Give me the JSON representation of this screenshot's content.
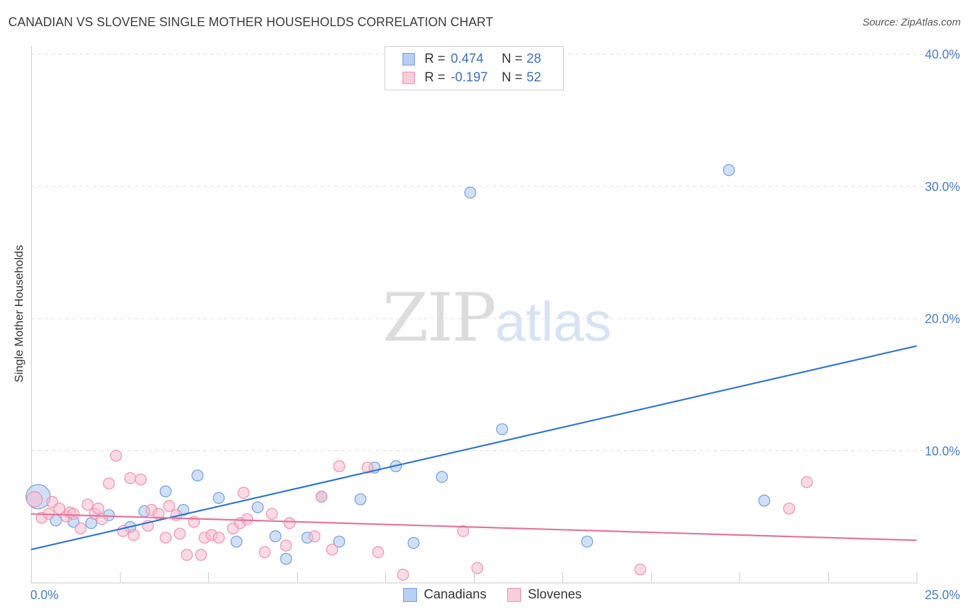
{
  "title": "CANADIAN VS SLOVENE SINGLE MOTHER HOUSEHOLDS CORRELATION CHART",
  "source": "Source: ZipAtlas.com",
  "watermark": {
    "zip": "ZIP",
    "atlas": "atlas"
  },
  "legend": {
    "rows": [
      {
        "r_label": "R =",
        "r_value": "0.474",
        "n_label": "N =",
        "n_value": "28"
      },
      {
        "r_label": "R =",
        "r_value": "-0.197",
        "n_label": "N =",
        "n_value": "52"
      }
    ]
  },
  "bottom_legend": {
    "items": [
      {
        "label": "Canadians"
      },
      {
        "label": "Slovenes"
      }
    ]
  },
  "colors": {
    "canadian_fill": "#a9c7ef",
    "canadian_stroke": "#6f9bdc",
    "canadian_line": "#2f74d0",
    "slovene_fill": "#f6bccd",
    "slovene_stroke": "#ee8fac",
    "slovene_line": "#e4729a",
    "grid": "#e0e0e0",
    "tick_text": "#4a7cc9"
  },
  "chart_data": {
    "type": "scatter",
    "title": "CANADIAN VS SLOVENE SINGLE MOTHER HOUSEHOLDS CORRELATION CHART",
    "xlabel": "",
    "ylabel": "Single Mother Households",
    "xlim": [
      0,
      25
    ],
    "ylim": [
      0,
      40
    ],
    "x_tick_labels": [
      "0.0%",
      "25.0%"
    ],
    "y_ticks": [
      10,
      20,
      30,
      40
    ],
    "y_tick_labels": [
      "10.0%",
      "20.0%",
      "30.0%",
      "40.0%"
    ],
    "series": [
      {
        "name": "Canadians",
        "r": 0.474,
        "n": 28,
        "trend": {
          "x0": 0,
          "y0": 2.5,
          "x1": 25,
          "y1": 17.9
        },
        "points": [
          [
            0.2,
            6.5,
            2.2
          ],
          [
            0.7,
            4.7,
            1
          ],
          [
            1.2,
            4.6,
            1
          ],
          [
            1.7,
            4.5,
            1
          ],
          [
            2.2,
            5.1,
            1
          ],
          [
            2.8,
            4.2,
            1
          ],
          [
            3.2,
            5.4,
            1
          ],
          [
            3.8,
            6.9,
            1
          ],
          [
            4.3,
            5.5,
            1
          ],
          [
            4.7,
            8.1,
            1
          ],
          [
            5.3,
            6.4,
            1
          ],
          [
            5.8,
            3.1,
            1
          ],
          [
            6.4,
            5.7,
            1
          ],
          [
            6.9,
            3.5,
            1
          ],
          [
            7.2,
            1.8,
            1
          ],
          [
            7.8,
            3.4,
            1
          ],
          [
            8.2,
            6.5,
            1
          ],
          [
            8.7,
            3.1,
            1
          ],
          [
            9.3,
            6.3,
            1
          ],
          [
            9.7,
            8.7,
            1
          ],
          [
            10.3,
            8.8,
            1
          ],
          [
            10.8,
            3.0,
            1
          ],
          [
            11.6,
            8.0,
            1
          ],
          [
            12.4,
            29.5,
            1
          ],
          [
            13.3,
            11.6,
            1
          ],
          [
            15.7,
            3.1,
            1
          ],
          [
            19.7,
            31.2,
            1
          ],
          [
            20.7,
            6.2,
            1
          ]
        ]
      },
      {
        "name": "Slovenes",
        "r": -0.197,
        "n": 52,
        "trend": {
          "x0": 0,
          "y0": 5.2,
          "x1": 25,
          "y1": 3.2
        },
        "points": [
          [
            0.1,
            6.3,
            1.4
          ],
          [
            0.3,
            4.9,
            1
          ],
          [
            0.5,
            5.2,
            1
          ],
          [
            0.6,
            6.1,
            1
          ],
          [
            0.8,
            5.6,
            1
          ],
          [
            1.0,
            5.0,
            1
          ],
          [
            1.1,
            5.3,
            1
          ],
          [
            1.2,
            5.2,
            1
          ],
          [
            1.4,
            4.1,
            1
          ],
          [
            1.6,
            5.9,
            1
          ],
          [
            1.8,
            5.2,
            1
          ],
          [
            1.9,
            5.6,
            1
          ],
          [
            2.0,
            4.8,
            1
          ],
          [
            2.2,
            7.5,
            1
          ],
          [
            2.4,
            9.6,
            1
          ],
          [
            2.6,
            3.9,
            1
          ],
          [
            2.8,
            7.9,
            1
          ],
          [
            2.9,
            3.6,
            1
          ],
          [
            3.1,
            7.8,
            1
          ],
          [
            3.3,
            4.3,
            1
          ],
          [
            3.4,
            5.5,
            1
          ],
          [
            3.6,
            5.2,
            1
          ],
          [
            3.8,
            3.4,
            1
          ],
          [
            3.9,
            5.8,
            1
          ],
          [
            4.1,
            5.1,
            1
          ],
          [
            4.2,
            3.7,
            1
          ],
          [
            4.4,
            2.1,
            1
          ],
          [
            4.6,
            4.6,
            1
          ],
          [
            4.8,
            2.1,
            1
          ],
          [
            4.9,
            3.4,
            1
          ],
          [
            5.1,
            3.6,
            1
          ],
          [
            5.3,
            3.4,
            1
          ],
          [
            5.7,
            4.1,
            1
          ],
          [
            5.9,
            4.5,
            1
          ],
          [
            6.0,
            6.8,
            1
          ],
          [
            6.1,
            4.8,
            1
          ],
          [
            6.6,
            2.3,
            1
          ],
          [
            6.8,
            5.2,
            1
          ],
          [
            7.2,
            2.8,
            1
          ],
          [
            7.3,
            4.5,
            1
          ],
          [
            8.0,
            3.5,
            1
          ],
          [
            8.2,
            6.5,
            1
          ],
          [
            8.5,
            2.5,
            1
          ],
          [
            8.7,
            8.8,
            1
          ],
          [
            9.5,
            8.7,
            1
          ],
          [
            9.8,
            2.3,
            1
          ],
          [
            10.5,
            0.6,
            1
          ],
          [
            12.2,
            3.9,
            1
          ],
          [
            12.6,
            1.1,
            1
          ],
          [
            17.2,
            1.0,
            1
          ],
          [
            21.4,
            5.6,
            1
          ],
          [
            21.9,
            7.6,
            1
          ]
        ]
      }
    ]
  }
}
